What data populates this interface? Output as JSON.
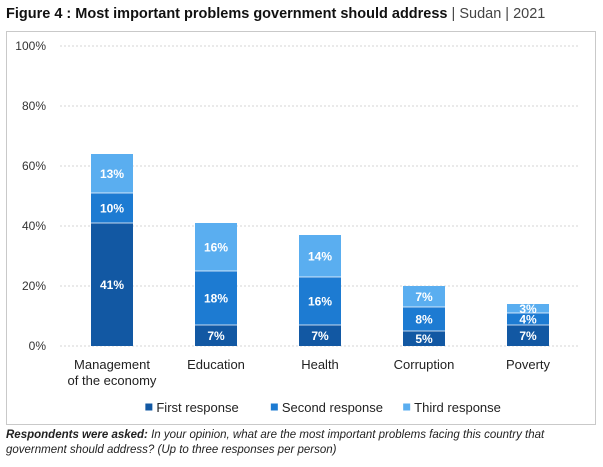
{
  "header": {
    "title_bold": "Figure 4 : Most important problems government should address",
    "title_sep1": " | ",
    "title_country": "Sudan",
    "title_sep2": " | ",
    "title_year": "2021"
  },
  "colors": {
    "first": "#1258a3",
    "second": "#1d7bd2",
    "third": "#5aaef0"
  },
  "chart_data": {
    "type": "bar",
    "stacked": true,
    "categories": [
      [
        "Management",
        "of the economy"
      ],
      [
        "Education"
      ],
      [
        "Health"
      ],
      [
        "Corruption"
      ],
      [
        "Poverty"
      ]
    ],
    "series": [
      {
        "name": "First response",
        "values": [
          41,
          7,
          7,
          5,
          7
        ]
      },
      {
        "name": "Second response",
        "values": [
          10,
          18,
          16,
          8,
          4
        ]
      },
      {
        "name": "Third response",
        "values": [
          13,
          16,
          14,
          7,
          3
        ]
      }
    ],
    "y_ticks": [
      0,
      20,
      40,
      60,
      80,
      100
    ],
    "ylim": [
      0,
      100
    ],
    "value_suffix": "%",
    "grid": true,
    "legend_position": "bottom"
  },
  "footnote": {
    "question_label": "Respondents were asked:",
    "question_text": " In your opinion, what are the most important problems facing this country that government should address? (Up to three responses per person)"
  }
}
